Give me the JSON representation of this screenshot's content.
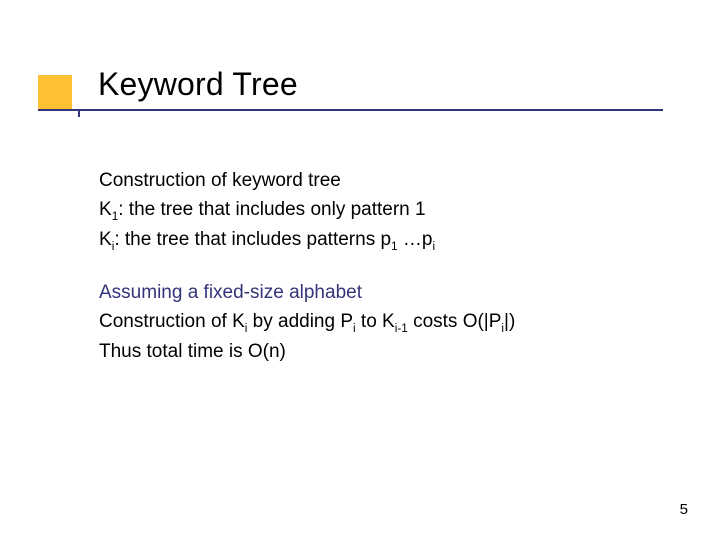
{
  "slide": {
    "title": "Keyword Tree",
    "accent_color": "#fec134",
    "underline_color": "#34347b",
    "assumption_color": "#34347b",
    "background_color": "#ffffff",
    "title_fontsize": 32,
    "body_fontsize": 19,
    "body_block_1": {
      "line1": "Construction of keyword tree",
      "line2_pre": "K",
      "line2_sub": "1",
      "line2_post": ": the tree that includes only pattern 1",
      "line3_pre": "K",
      "line3_sub": "i",
      "line3_mid": ": the tree that includes patterns p",
      "line3_sub2": "1",
      "line3_mid2": " …p",
      "line3_sub3": "i"
    },
    "body_block_2": {
      "line1": "Assuming a fixed-size alphabet",
      "line2_a": "Construction of K",
      "line2_sub1": "i",
      "line2_b": " by adding P",
      "line2_sub2": "i",
      "line2_c": " to K",
      "line2_sub3": "i-1",
      "line2_d": " costs O(|P",
      "line2_sub4": "i",
      "line2_e": "|)",
      "line3": "Thus total time is O(n)"
    },
    "page_number": "5"
  }
}
